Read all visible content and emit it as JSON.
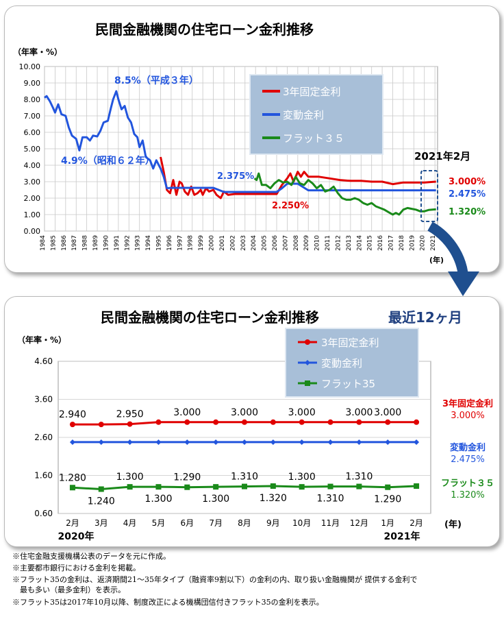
{
  "chart_data": [
    {
      "type": "line",
      "title": "民間金融機関の住宅ローン金利推移",
      "ylabel": "（年率・%）",
      "xlabel": "(年)",
      "ylim": [
        0,
        10
      ],
      "yticks": [
        "0.00",
        "1.00",
        "2.00",
        "3.00",
        "4.00",
        "5.00",
        "6.00",
        "7.00",
        "8.00",
        "9.00",
        "10.00"
      ],
      "categories": [
        "1984",
        "1985",
        "1986",
        "1987",
        "1988",
        "1989",
        "1990",
        "1991",
        "1992",
        "1993",
        "1994",
        "1995",
        "1996",
        "1997",
        "1998",
        "1999",
        "2000",
        "2001",
        "2002",
        "2003",
        "2004",
        "2005",
        "2006",
        "2007",
        "2008",
        "2009",
        "2010",
        "2011",
        "2012",
        "2013",
        "2014",
        "2015",
        "2016",
        "2017",
        "2018",
        "2019",
        "2020",
        "2021"
      ],
      "grid": true,
      "legend_position": "top-right",
      "series": [
        {
          "name": "3年固定金利",
          "color": "#e00000",
          "points": [
            [
              1995.0,
              4.5
            ],
            [
              1995.3,
              3.6
            ],
            [
              1995.6,
              2.5
            ],
            [
              1995.9,
              2.3
            ],
            [
              1996.2,
              3.1
            ],
            [
              1996.5,
              2.2
            ],
            [
              1996.8,
              3.0
            ],
            [
              1997.0,
              2.9
            ],
            [
              1997.3,
              2.4
            ],
            [
              1997.6,
              2.2
            ],
            [
              1997.9,
              2.7
            ],
            [
              1998.2,
              2.2
            ],
            [
              1998.5,
              2.3
            ],
            [
              1998.8,
              2.5
            ],
            [
              1999.0,
              2.2
            ],
            [
              1999.3,
              2.6
            ],
            [
              1999.6,
              2.4
            ],
            [
              2000.0,
              2.5
            ],
            [
              2000.3,
              2.2
            ],
            [
              2000.7,
              2.0
            ],
            [
              2001.0,
              2.4
            ],
            [
              2001.4,
              2.2
            ],
            [
              2002.0,
              2.25
            ],
            [
              2003.0,
              2.25
            ],
            [
              2004.0,
              2.25
            ],
            [
              2005.0,
              2.25
            ],
            [
              2006.0,
              2.25
            ],
            [
              2006.5,
              2.8
            ],
            [
              2007.0,
              3.2
            ],
            [
              2007.3,
              3.5
            ],
            [
              2007.6,
              3.0
            ],
            [
              2008.0,
              3.6
            ],
            [
              2008.3,
              3.3
            ],
            [
              2008.6,
              3.6
            ],
            [
              2009.0,
              3.3
            ],
            [
              2010.0,
              3.3
            ],
            [
              2011.0,
              3.2
            ],
            [
              2012.0,
              3.1
            ],
            [
              2013.0,
              3.05
            ],
            [
              2014.0,
              3.05
            ],
            [
              2015.0,
              3.0
            ],
            [
              2016.0,
              3.0
            ],
            [
              2017.0,
              2.85
            ],
            [
              2018.0,
              2.95
            ],
            [
              2019.0,
              2.95
            ],
            [
              2020.0,
              2.95
            ],
            [
              2021.1,
              3.0
            ]
          ]
        },
        {
          "name": "変動金利",
          "color": "#2255dd",
          "points": [
            [
              1984.0,
              8.1
            ],
            [
              1984.2,
              8.2
            ],
            [
              1984.5,
              7.9
            ],
            [
              1984.8,
              7.5
            ],
            [
              1985.0,
              7.2
            ],
            [
              1985.3,
              7.7
            ],
            [
              1985.6,
              7.1
            ],
            [
              1986.0,
              7.0
            ],
            [
              1986.3,
              6.3
            ],
            [
              1986.6,
              5.8
            ],
            [
              1987.0,
              5.6
            ],
            [
              1987.3,
              4.9
            ],
            [
              1987.6,
              5.7
            ],
            [
              1988.0,
              5.7
            ],
            [
              1988.3,
              5.5
            ],
            [
              1988.6,
              5.8
            ],
            [
              1989.0,
              5.75
            ],
            [
              1989.3,
              6.1
            ],
            [
              1989.6,
              6.6
            ],
            [
              1990.0,
              6.7
            ],
            [
              1990.3,
              7.5
            ],
            [
              1990.5,
              8.0
            ],
            [
              1990.8,
              8.5
            ],
            [
              1991.0,
              8.0
            ],
            [
              1991.3,
              7.4
            ],
            [
              1991.6,
              7.6
            ],
            [
              1991.9,
              6.9
            ],
            [
              1992.2,
              6.6
            ],
            [
              1992.5,
              5.9
            ],
            [
              1992.8,
              5.7
            ],
            [
              1993.0,
              5.1
            ],
            [
              1993.3,
              5.5
            ],
            [
              1993.6,
              4.5
            ],
            [
              1994.0,
              4.3
            ],
            [
              1994.3,
              3.8
            ],
            [
              1994.6,
              4.3
            ],
            [
              1995.0,
              3.8
            ],
            [
              1995.3,
              3.3
            ],
            [
              1995.6,
              2.6
            ],
            [
              1996.0,
              2.625
            ],
            [
              2000.0,
              2.625
            ],
            [
              2001.0,
              2.375
            ],
            [
              2006.0,
              2.375
            ],
            [
              2006.5,
              2.6
            ],
            [
              2007.0,
              2.875
            ],
            [
              2008.0,
              2.875
            ],
            [
              2009.0,
              2.475
            ],
            [
              2010.0,
              2.475
            ],
            [
              2015.0,
              2.475
            ],
            [
              2021.1,
              2.475
            ]
          ]
        },
        {
          "name": "フラット３５",
          "color": "#1a8a1a",
          "points": [
            [
              2003.9,
              3.2
            ],
            [
              2004.1,
              3.1
            ],
            [
              2004.3,
              3.5
            ],
            [
              2004.6,
              2.8
            ],
            [
              2005.0,
              2.8
            ],
            [
              2005.4,
              2.6
            ],
            [
              2005.8,
              2.9
            ],
            [
              2006.2,
              3.1
            ],
            [
              2006.6,
              2.95
            ],
            [
              2007.0,
              3.0
            ],
            [
              2007.4,
              2.8
            ],
            [
              2007.8,
              3.3
            ],
            [
              2008.2,
              2.9
            ],
            [
              2008.6,
              2.8
            ],
            [
              2009.0,
              3.1
            ],
            [
              2009.4,
              2.9
            ],
            [
              2009.8,
              2.6
            ],
            [
              2010.2,
              2.8
            ],
            [
              2010.6,
              2.4
            ],
            [
              2011.0,
              2.5
            ],
            [
              2011.4,
              2.7
            ],
            [
              2011.8,
              2.3
            ],
            [
              2012.2,
              2.0
            ],
            [
              2012.6,
              1.9
            ],
            [
              2013.0,
              1.9
            ],
            [
              2013.4,
              2.0
            ],
            [
              2013.8,
              1.9
            ],
            [
              2014.2,
              1.7
            ],
            [
              2014.6,
              1.6
            ],
            [
              2015.0,
              1.7
            ],
            [
              2015.4,
              1.5
            ],
            [
              2015.8,
              1.4
            ],
            [
              2016.2,
              1.3
            ],
            [
              2016.6,
              1.15
            ],
            [
              2017.0,
              1.0
            ],
            [
              2017.3,
              1.1
            ],
            [
              2017.6,
              1.0
            ],
            [
              2018.0,
              1.3
            ],
            [
              2018.4,
              1.4
            ],
            [
              2018.8,
              1.35
            ],
            [
              2019.2,
              1.3
            ],
            [
              2019.6,
              1.2
            ],
            [
              2020.0,
              1.2
            ],
            [
              2020.4,
              1.28
            ],
            [
              2021.1,
              1.32
            ]
          ]
        }
      ],
      "annotations": {
        "peak": "8.5%（平成３年）",
        "low": "4.9%（昭和６２年）",
        "variable_low": "2.375%",
        "fixed_low": "2.250%",
        "date_label": "2021年2月",
        "fixed_value": "3.000%",
        "variable_value": "2.475%",
        "flat_value": "1.320%"
      }
    },
    {
      "type": "line",
      "title": "民間金融機関の住宅ローン金利推移",
      "subtitle": "最近12ヶ月",
      "ylabel": "（年率・%）",
      "xlabel": "(年)",
      "ylim": [
        0.6,
        4.6
      ],
      "yticks": [
        "0.60",
        "1.60",
        "2.60",
        "3.60",
        "4.60"
      ],
      "categories": [
        "2月",
        "3月",
        "4月",
        "5月",
        "6月",
        "7月",
        "8月",
        "9月",
        "10月",
        "11月",
        "12月",
        "1月",
        "2月"
      ],
      "year_labels": {
        "start": "2020年",
        "end": "2021年"
      },
      "grid": true,
      "legend_position": "top-center",
      "series": [
        {
          "name": "3年固定金利",
          "color": "#e00000",
          "values": [
            2.94,
            2.94,
            2.95,
            3.0,
            3.0,
            3.0,
            3.0,
            3.0,
            3.0,
            3.0,
            3.0,
            3.0,
            3.0
          ],
          "labels": [
            "2.940",
            "",
            "2.950",
            "",
            "3.000",
            "",
            "3.000",
            "",
            "3.000",
            "",
            "3.000",
            "3.000",
            ""
          ]
        },
        {
          "name": "変動金利",
          "color": "#2255dd",
          "values": [
            2.475,
            2.475,
            2.475,
            2.475,
            2.475,
            2.475,
            2.475,
            2.475,
            2.475,
            2.475,
            2.475,
            2.475,
            2.475
          ],
          "labels": [
            "",
            "",
            "",
            "",
            "",
            "",
            "",
            "",
            "",
            "",
            "",
            "",
            ""
          ]
        },
        {
          "name": "フラット35",
          "color": "#1a8a1a",
          "values": [
            1.28,
            1.24,
            1.3,
            1.3,
            1.29,
            1.3,
            1.31,
            1.32,
            1.3,
            1.31,
            1.31,
            1.29,
            1.32
          ],
          "labels": [
            "1.280",
            "1.240",
            "1.300",
            "1.300",
            "1.290",
            "1.300",
            "1.310",
            "1.320",
            "1.300",
            "1.310",
            "1.310",
            "1.290",
            ""
          ]
        }
      ],
      "end_labels": [
        {
          "name": "3年固定金利",
          "value": "3.000%"
        },
        {
          "name": "変動金利",
          "value": "2.475%"
        },
        {
          "name": "フラット３５",
          "value": "1.320%"
        }
      ]
    }
  ],
  "notes": [
    "※住宅金融支援機構公表のデータを元に作成。",
    "※主要都市銀行における金利を掲載。",
    "※フラット35の金利は、返済期間21～35年タイプ（融資率9割以下）の金利の内、取り扱い金融機関が 提供する金利で",
    "　最も多い（最多金利）を表示。",
    "※フラット35は2017年10月以降、制度改正による機構団信付きフラット35の金利を表示。"
  ]
}
